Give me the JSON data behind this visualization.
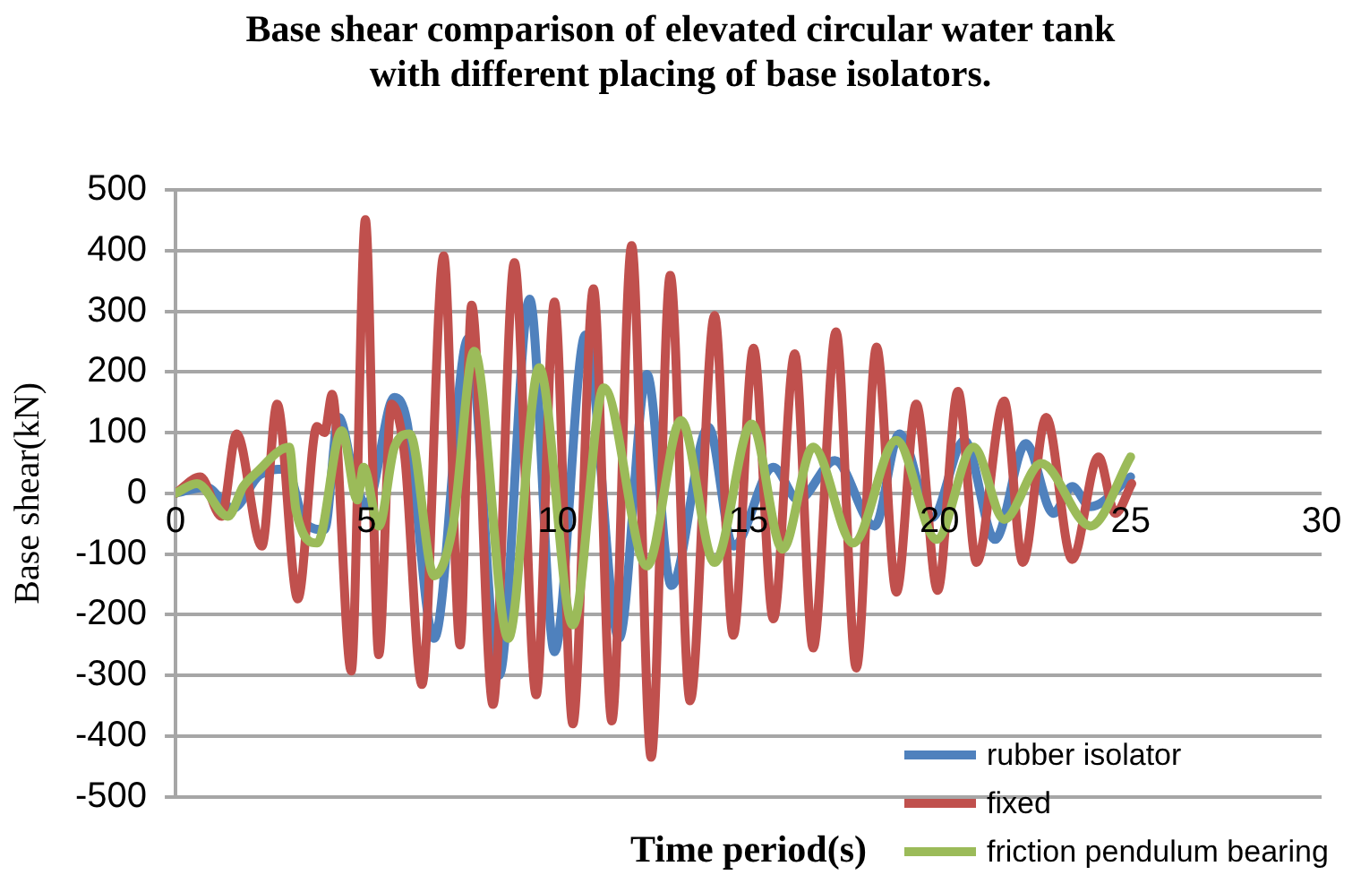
{
  "chart_data": {
    "type": "line",
    "title": "Base shear comparison of elevated circular water tank with different placing of base isolators.",
    "xlabel": "Time period(s)",
    "ylabel": "Base shear(kN)",
    "xlim": [
      0,
      30
    ],
    "xticks": [
      0,
      5,
      10,
      15,
      20,
      25,
      30
    ],
    "ylim": [
      -500,
      500
    ],
    "yticks": [
      -500,
      -400,
      -300,
      -200,
      -100,
      0,
      100,
      200,
      300,
      400,
      500
    ],
    "grid": "y",
    "legend": "bottom right",
    "marker": "none",
    "line_style": "solid",
    "series": [
      {
        "name": "rubber isolator",
        "color": "#4f81bd",
        "x": [
          0,
          0.8,
          1.5,
          2.2,
          2.9,
          3.4,
          3.9,
          4.27,
          4.7,
          5.0,
          5.73,
          6.05,
          6.77,
          7.66,
          8.47,
          9.27,
          9.92,
          10.73,
          11.61,
          12.34,
          12.98,
          13.95,
          14.6,
          15.65,
          16.3,
          17.26,
          18.3,
          18.95,
          19.8,
          20.65,
          21.45,
          22.26,
          22.98,
          23.47,
          23.95,
          25
        ],
        "values": [
          0,
          10,
          -25,
          30,
          40,
          -50,
          -60,
          125,
          20,
          -20,
          158,
          120,
          -239,
          255,
          -300,
          320,
          -261,
          261,
          -239,
          196,
          -152,
          109,
          -87,
          43,
          -11,
          54,
          -54,
          98,
          -40,
          87,
          -76,
          82,
          -33,
          11,
          -22,
          27
        ]
      },
      {
        "name": "fixed",
        "color": "#c0504d",
        "x": [
          0,
          0.65,
          1.2,
          1.6,
          2.26,
          2.66,
          3.2,
          3.7,
          3.9,
          4.1,
          4.6,
          4.97,
          5.32,
          5.65,
          6.0,
          6.45,
          7.02,
          7.45,
          7.75,
          8.31,
          8.87,
          9.44,
          9.92,
          10.4,
          10.94,
          11.42,
          11.94,
          12.45,
          12.95,
          13.47,
          14.11,
          14.6,
          15.13,
          15.65,
          16.21,
          16.69,
          17.29,
          17.82,
          18.35,
          18.87,
          19.39,
          19.95,
          20.48,
          20.97,
          21.69,
          22.18,
          22.79,
          23.47,
          24.16,
          24.6,
          25.03
        ],
        "values": [
          0,
          27,
          -38,
          98,
          -87,
          147,
          -174,
          110,
          100,
          163,
          -293,
          451,
          -266,
          147,
          60,
          -315,
          391,
          -250,
          310,
          -348,
          380,
          -332,
          315,
          -380,
          337,
          -375,
          408,
          -435,
          359,
          -342,
          293,
          -234,
          239,
          -207,
          230,
          -255,
          266,
          -288,
          241,
          -163,
          147,
          -160,
          168,
          -114,
          152,
          -114,
          125,
          -109,
          60,
          -33,
          16
        ]
      },
      {
        "name": "friction pendulum bearing",
        "color": "#9bbb59",
        "x": [
          0,
          0.56,
          1.37,
          1.77,
          2.1,
          2.98,
          3.15,
          3.71,
          4.35,
          4.76,
          4.92,
          5.32,
          5.73,
          6.13,
          6.77,
          7.26,
          7.82,
          8.71,
          9.52,
          10.4,
          11.21,
          12.34,
          13.23,
          14.11,
          15.08,
          15.89,
          16.69,
          17.74,
          18.87,
          19.92,
          20.89,
          21.69,
          22.66,
          23.95,
          25.0
        ],
        "values": [
          0,
          16,
          -38,
          11,
          33,
          76,
          -27,
          -82,
          103,
          -11,
          43,
          -54,
          76,
          98,
          -136,
          -54,
          234,
          -239,
          207,
          -217,
          174,
          -120,
          120,
          -114,
          114,
          -92,
          76,
          -82,
          87,
          -76,
          76,
          -43,
          49,
          -54,
          60
        ]
      }
    ]
  }
}
